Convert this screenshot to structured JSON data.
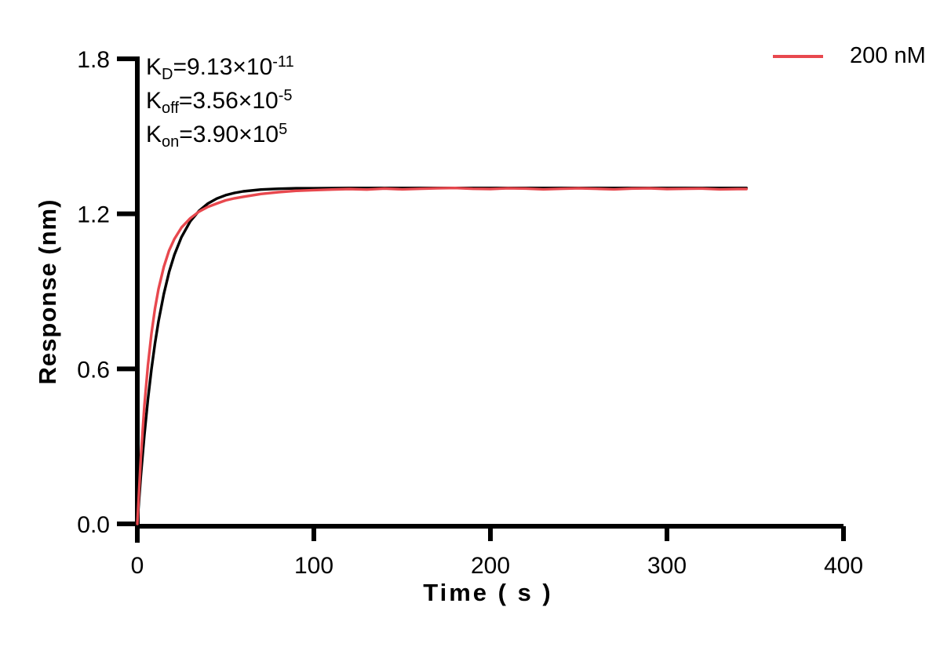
{
  "chart_data": {
    "type": "line",
    "title": "",
    "xlabel": "Time ( s )",
    "ylabel": "Response (nm)",
    "xlim": [
      0,
      400
    ],
    "ylim": [
      0,
      1.8
    ],
    "grid": false,
    "axis_color": "#000000",
    "background_color": "#ffffff",
    "xticks": {
      "values": [
        0,
        100,
        200,
        300,
        400
      ],
      "labels": [
        "0",
        "100",
        "200",
        "300",
        "400"
      ]
    },
    "yticks": {
      "values": [
        0,
        0.6,
        1.2,
        1.8
      ],
      "labels": [
        "0.0",
        "0.6",
        "1.2",
        "1.8"
      ]
    },
    "legend": {
      "position": "top-right",
      "entries": [
        {
          "label": "200 nM",
          "color": "#E8484E"
        }
      ]
    },
    "annotations": [
      {
        "base": "K",
        "sub": "D",
        "value": "=9.13×10",
        "sup": "-11"
      },
      {
        "base": "K",
        "sub": "off",
        "value": "=3.56×10",
        "sup": "-5"
      },
      {
        "base": "K",
        "sub": "on",
        "value": "=3.90×10",
        "sup": "5"
      }
    ],
    "series": [
      {
        "name": "Fitted curve",
        "color": "#000000",
        "stroke_width": 3.4,
        "x": [
          0,
          2,
          4,
          6,
          8,
          10,
          12,
          15,
          18,
          21,
          25,
          30,
          35,
          40,
          45,
          50,
          55,
          60,
          70,
          80,
          90,
          100,
          120,
          140,
          160,
          180,
          200,
          220,
          240,
          260,
          280,
          300,
          320,
          340,
          345
        ],
        "y": [
          0,
          0.186,
          0.344,
          0.481,
          0.598,
          0.698,
          0.784,
          0.89,
          0.975,
          1.042,
          1.11,
          1.171,
          1.212,
          1.24,
          1.259,
          1.272,
          1.281,
          1.287,
          1.294,
          1.297,
          1.299,
          1.299,
          1.3,
          1.3,
          1.3,
          1.3,
          1.3,
          1.3,
          1.3,
          1.3,
          1.3,
          1.3,
          1.3,
          1.3,
          1.3
        ]
      },
      {
        "name": "200 nM",
        "color": "#E8484E",
        "stroke_width": 3.4,
        "x": [
          0,
          2,
          4,
          6,
          8,
          10,
          12,
          15,
          18,
          21,
          25,
          30,
          35,
          40,
          45,
          50,
          55,
          60,
          70,
          80,
          90,
          100,
          110,
          120,
          130,
          140,
          150,
          160,
          170,
          180,
          190,
          200,
          210,
          220,
          230,
          240,
          250,
          260,
          270,
          280,
          290,
          300,
          310,
          320,
          330,
          340,
          345
        ],
        "y": [
          0,
          0.257,
          0.457,
          0.613,
          0.736,
          0.833,
          0.909,
          0.995,
          1.058,
          1.103,
          1.147,
          1.183,
          1.209,
          1.227,
          1.24,
          1.252,
          1.26,
          1.266,
          1.277,
          1.284,
          1.289,
          1.292,
          1.294,
          1.296,
          1.294,
          1.298,
          1.295,
          1.297,
          1.299,
          1.3,
          1.297,
          1.296,
          1.299,
          1.298,
          1.295,
          1.297,
          1.299,
          1.297,
          1.295,
          1.298,
          1.299,
          1.296,
          1.297,
          1.298,
          1.295,
          1.296,
          1.296
        ]
      }
    ]
  }
}
